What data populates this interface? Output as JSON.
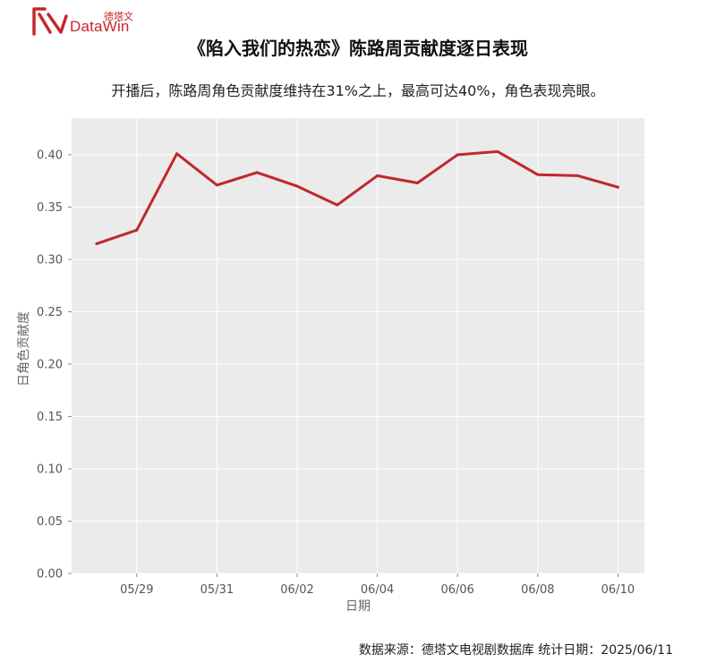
{
  "brand": {
    "cn": "德塔文",
    "en": "DataWin",
    "color": "#c8262b"
  },
  "header": {
    "title": "《陷入我们的热恋》陈路周贡献度逐日表现",
    "subtitle": "开播后，陈路周角色贡献度维持在31%之上，最高可达40%，角色表现亮眼。"
  },
  "footer": {
    "source": "数据来源：德塔文电视剧数据库 统计日期：2025/06/11"
  },
  "chart_data": {
    "type": "line",
    "xlabel": "日期",
    "ylabel": "日角色贡献度",
    "x": [
      "05/28",
      "05/29",
      "05/30",
      "05/31",
      "06/01",
      "06/02",
      "06/03",
      "06/04",
      "06/05",
      "06/06",
      "06/07",
      "06/08",
      "06/09",
      "06/10"
    ],
    "xticks": [
      "05/29",
      "05/31",
      "06/02",
      "06/04",
      "06/06",
      "06/08",
      "06/10"
    ],
    "yticks": [
      "0.00",
      "0.05",
      "0.10",
      "0.15",
      "0.20",
      "0.25",
      "0.30",
      "0.35",
      "0.40"
    ],
    "ylim": [
      0,
      0.435
    ],
    "grid": true,
    "background": "#ebebeb",
    "line_color": "#c0272d",
    "series": [
      {
        "values": [
          0.315,
          0.328,
          0.401,
          0.371,
          0.383,
          0.37,
          0.352,
          0.38,
          0.373,
          0.4,
          0.403,
          0.381,
          0.38,
          0.369
        ]
      }
    ]
  }
}
